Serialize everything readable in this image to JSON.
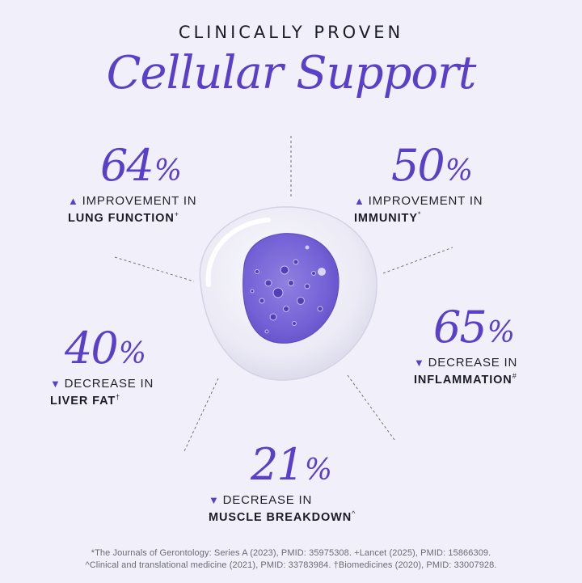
{
  "header": {
    "kicker": "CLINICALLY PROVEN",
    "headline": "Cellular Support"
  },
  "stats": {
    "lung": {
      "number": "64",
      "percent": "%",
      "direction": "up",
      "line1": "IMPROVEMENT IN",
      "line2": "LUNG FUNCTION",
      "mark": "+"
    },
    "immunity": {
      "number": "50",
      "percent": "%",
      "direction": "up",
      "line1": "IMPROVEMENT IN",
      "line2": "IMMUNITY",
      "mark": "*"
    },
    "liver": {
      "number": "40",
      "percent": "%",
      "direction": "down",
      "line1": "DECREASE IN",
      "line2": "LIVER FAT",
      "mark": "†"
    },
    "inflammation": {
      "number": "65",
      "percent": "%",
      "direction": "down",
      "line1": "DECREASE IN",
      "line2": "INFLAMMATION",
      "mark": "#"
    },
    "muscle": {
      "number": "21",
      "percent": "%",
      "direction": "down",
      "line1": "DECREASE IN",
      "line2": "MUSCLE BREAKDOWN",
      "mark": "^"
    }
  },
  "arrows": {
    "up": "▲",
    "down": "▼"
  },
  "footnotes": {
    "line1": "*The Journals of Gerontology: Series A (2023), PMID: 35975308. +Lancet (2025), PMID: 15866309.",
    "line2": "^Clinical and translational medicine (2021), PMID: 33783984. †Biomedicines (2020), PMID: 33007928."
  },
  "colors": {
    "accent": "#5a40c8",
    "background": "#f1f0fa",
    "text": "#1c1c27"
  },
  "icons": {
    "center": "gel-droplet-icon"
  }
}
